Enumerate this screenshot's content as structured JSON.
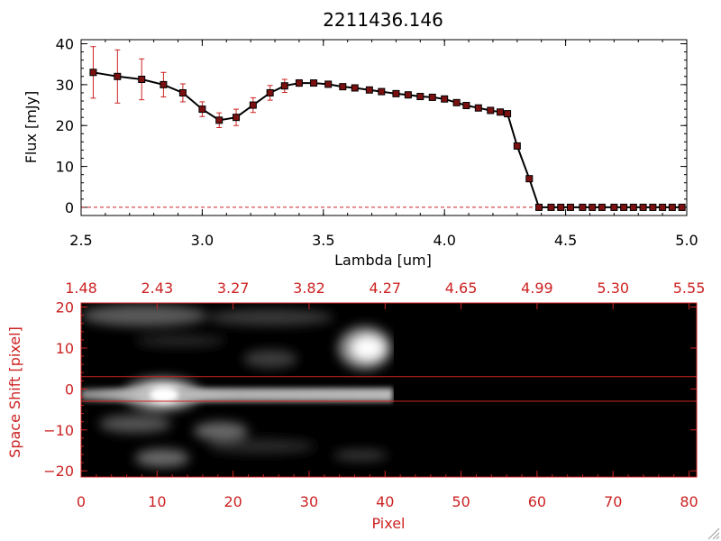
{
  "chart_data": [
    {
      "type": "line",
      "title": "2211436.146",
      "xlabel": "Lambda [um]",
      "ylabel": "Flux [mJy]",
      "xlim": [
        2.5,
        5.0
      ],
      "ylim": [
        -2,
        41
      ],
      "xticks": [
        2.5,
        3.0,
        3.5,
        4.0,
        4.5,
        5.0
      ],
      "xtick_labels": [
        "2.5",
        "3.0",
        "3.5",
        "4.0",
        "4.5",
        "5.0"
      ],
      "yticks": [
        0,
        10,
        20,
        30,
        40
      ],
      "ytick_labels": [
        "0",
        "10",
        "20",
        "30",
        "40"
      ],
      "grid": false,
      "colors": {
        "line": "#000000",
        "marker": "#7a1010",
        "errorbar": "#cc2222",
        "zero_line": "#cc2222"
      },
      "series": [
        {
          "x": [
            2.55,
            2.65,
            2.75,
            2.84,
            2.92,
            3.0,
            3.07,
            3.14,
            3.21,
            3.28,
            3.34,
            3.4,
            3.46,
            3.52,
            3.58,
            3.63,
            3.69,
            3.74,
            3.8,
            3.85,
            3.9,
            3.95,
            4.0,
            4.05,
            4.09,
            4.14,
            4.19,
            4.23,
            4.26,
            4.3,
            4.35,
            4.39,
            4.44,
            4.48,
            4.52,
            4.57,
            4.61,
            4.65,
            4.7,
            4.74,
            4.78,
            4.82,
            4.86,
            4.9,
            4.94,
            4.98
          ],
          "y": [
            33,
            32,
            31.3,
            30,
            28,
            24,
            21.3,
            22,
            25,
            28,
            29.7,
            30.4,
            30.4,
            30.1,
            29.5,
            29.2,
            28.7,
            28.3,
            27.8,
            27.5,
            27.1,
            26.9,
            26.5,
            25.6,
            24.9,
            24.3,
            23.7,
            23.3,
            22.9,
            15,
            7,
            0,
            0,
            0,
            0,
            0,
            0,
            0,
            0,
            0,
            0,
            0,
            0,
            0,
            0,
            0
          ],
          "err": [
            6.3,
            6.5,
            5,
            3,
            2.2,
            1.8,
            1.8,
            2,
            1.8,
            1.8,
            1.6,
            0.8,
            0.7,
            0.6,
            0.6,
            0.6,
            0.5,
            0.5,
            0.5,
            0.5,
            0.5,
            0.5,
            0.5,
            0.5,
            0.5,
            0.5,
            0.5,
            0.5,
            0.5,
            0.6,
            0.6,
            0.3,
            0.3,
            0.3,
            0.3,
            0.3,
            0.3,
            0.3,
            0.3,
            0.3,
            0.3,
            0.3,
            0.3,
            0.3,
            0.3,
            0.3
          ]
        }
      ]
    },
    {
      "type": "heatmap",
      "xlabel": "Pixel",
      "ylabel": "Space Shift [pixel]",
      "xlim": [
        0,
        81
      ],
      "ylim": [
        -21.5,
        21
      ],
      "xticks": [
        0,
        10,
        20,
        30,
        40,
        50,
        60,
        70,
        80
      ],
      "xtick_labels": [
        "0",
        "10",
        "20",
        "30",
        "40",
        "50",
        "60",
        "70",
        "80"
      ],
      "yticks": [
        -20,
        -10,
        0,
        10,
        20
      ],
      "ytick_labels": [
        "−20",
        "−10",
        "0",
        "10",
        "20"
      ],
      "top_axis_labels": [
        "1.48",
        "2.43",
        "3.27",
        "3.82",
        "4.27",
        "4.65",
        "4.99",
        "5.30",
        "5.55"
      ],
      "aperture_lines": [
        3,
        -3
      ],
      "colors": {
        "axis": "#cc2222",
        "aperture": "#cc2222"
      }
    }
  ]
}
